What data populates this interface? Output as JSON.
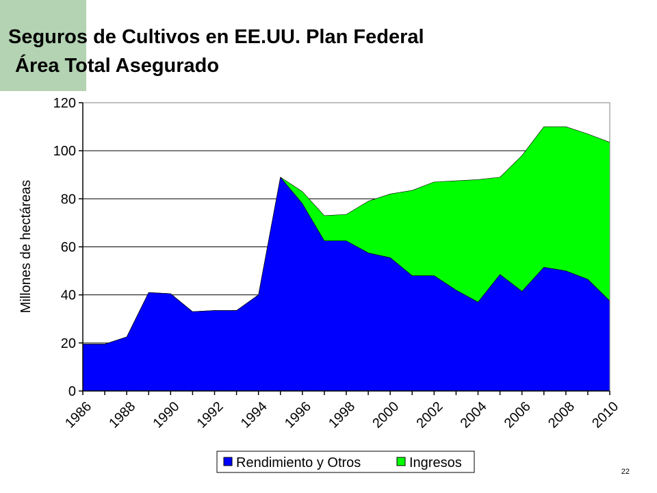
{
  "slide": {
    "title_line1": "Seguros de Cultivos en EE.UU. Plan Federal",
    "title_line2": "Área Total Asegurado",
    "page_number": "22",
    "accent_color": "#b3d3b3"
  },
  "chart_data": {
    "type": "area",
    "stacked": true,
    "title": "",
    "xlabel": "",
    "ylabel": "Millones de hectáreas",
    "ylim": [
      0,
      120
    ],
    "yticks": [
      0,
      20,
      40,
      60,
      80,
      100,
      120
    ],
    "x": [
      1986,
      1987,
      1988,
      1989,
      1990,
      1991,
      1992,
      1993,
      1994,
      1995,
      1996,
      1997,
      1998,
      1999,
      2000,
      2001,
      2002,
      2003,
      2004,
      2005,
      2006,
      2007,
      2008,
      2009,
      2010
    ],
    "xtick_labels": [
      "1986",
      "1988",
      "1990",
      "1992",
      "1994",
      "1996",
      "1998",
      "2000",
      "2002",
      "2004",
      "2006",
      "2008",
      "2010"
    ],
    "grid": "horizontal",
    "legend_position": "bottom",
    "series": [
      {
        "name": "Rendimiento y Otros",
        "color": "#0000ff",
        "values": [
          19.5,
          19.5,
          22.5,
          41,
          40.5,
          33,
          33.5,
          33.5,
          40,
          89,
          78,
          62.5,
          62.5,
          57.5,
          55.5,
          48,
          48,
          42,
          37,
          48.5,
          41.5,
          51.5,
          50,
          46.5,
          37.5
        ]
      },
      {
        "name": "Ingresos",
        "color": "#00ff00",
        "values": [
          0,
          0,
          0,
          0,
          0,
          0,
          0,
          0,
          0,
          0,
          5,
          10.5,
          11,
          21.5,
          26.5,
          35.5,
          39,
          45.5,
          51,
          40.5,
          56.5,
          58.5,
          60,
          60.5,
          66
        ]
      }
    ]
  }
}
